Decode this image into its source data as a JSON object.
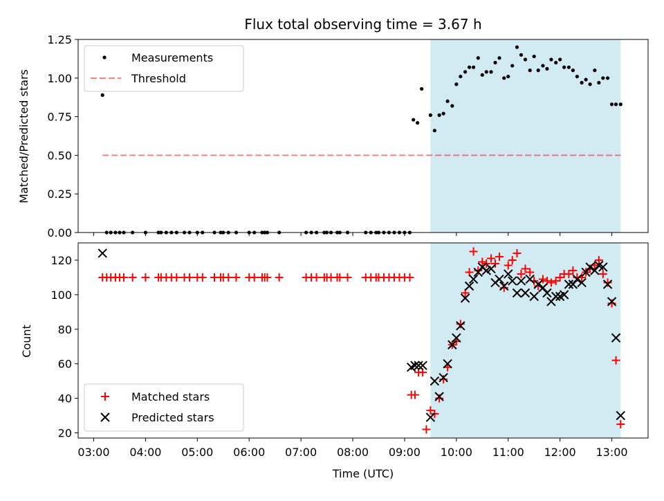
{
  "chart_data": [
    {
      "type": "scatter",
      "title": "Flux total observing time = 3.67 h",
      "xlabel": "",
      "ylabel": "Matched/Predicted stars",
      "xlim": [
        2.7,
        13.7
      ],
      "ylim": [
        0,
        1.25
      ],
      "yticks": [
        "0.00",
        "0.25",
        "0.50",
        "0.75",
        "1.00",
        "1.25"
      ],
      "ytick_values": [
        0,
        0.25,
        0.5,
        0.75,
        1.0,
        1.25
      ],
      "shaded_region": {
        "x0": 9.5,
        "x1": 13.17,
        "color": "#add8e6"
      },
      "legend": {
        "position": "upper left",
        "entries": [
          "Measurements",
          "Threshold"
        ]
      },
      "threshold": {
        "name": "Threshold",
        "x": [
          3.17,
          13.17
        ],
        "y": 0.5,
        "color": "#ff0000"
      },
      "series": [
        {
          "name": "Measurements",
          "color": "#000000",
          "x": [
            3.17,
            3.25,
            3.33,
            3.42,
            3.5,
            3.58,
            3.75,
            4.0,
            4.25,
            4.3,
            4.4,
            4.5,
            4.6,
            4.75,
            4.85,
            5.0,
            5.1,
            5.33,
            5.45,
            5.5,
            5.6,
            5.75,
            6.0,
            6.1,
            6.25,
            6.3,
            6.35,
            6.58,
            7.1,
            7.2,
            7.3,
            7.45,
            7.5,
            7.58,
            7.7,
            7.75,
            7.9,
            8.25,
            8.35,
            8.45,
            8.5,
            8.6,
            8.7,
            8.8,
            8.9,
            9.0,
            9.1,
            9.17,
            9.25,
            9.33,
            9.5,
            9.58,
            9.67,
            9.75,
            9.83,
            9.92,
            10.0,
            10.08,
            10.17,
            10.25,
            10.33,
            10.42,
            10.5,
            10.58,
            10.67,
            10.75,
            10.83,
            10.92,
            11.0,
            11.08,
            11.17,
            11.25,
            11.33,
            11.42,
            11.5,
            11.58,
            11.67,
            11.75,
            11.83,
            11.92,
            12.0,
            12.08,
            12.17,
            12.25,
            12.33,
            12.42,
            12.5,
            12.58,
            12.67,
            12.75,
            12.83,
            12.92,
            13.0,
            13.08,
            13.17
          ],
          "y": [
            0.89,
            0,
            0,
            0,
            0,
            0,
            0,
            0,
            0,
            0,
            0,
            0,
            0,
            0,
            0,
            0,
            0,
            0,
            0,
            0,
            0,
            0,
            0,
            0,
            0,
            0,
            0,
            0,
            0,
            0,
            0,
            0,
            0,
            0,
            0,
            0,
            0,
            0,
            0,
            0,
            0,
            0,
            0,
            0,
            0,
            0,
            0,
            0.73,
            0.71,
            0.93,
            0.76,
            0.66,
            0.76,
            0.77,
            0.85,
            0.82,
            0.96,
            1.01,
            1.04,
            1.07,
            1.07,
            1.13,
            1.02,
            1.04,
            1.04,
            1.1,
            1.13,
            1.0,
            1.01,
            1.08,
            1.2,
            1.15,
            1.12,
            1.05,
            1.14,
            1.05,
            1.08,
            1.06,
            1.12,
            1.1,
            1.12,
            1.07,
            1.07,
            1.05,
            1.01,
            0.97,
            0.99,
            0.96,
            1.05,
            0.97,
            1.0,
            1.0,
            0.83,
            0.83,
            0.83
          ]
        }
      ]
    },
    {
      "type": "scatter",
      "title": "",
      "xlabel": "Time (UTC)",
      "ylabel": "Count",
      "xlim": [
        2.7,
        13.7
      ],
      "ylim": [
        17,
        130
      ],
      "xticks": [
        "03:00",
        "04:00",
        "05:00",
        "06:00",
        "07:00",
        "08:00",
        "09:00",
        "10:00",
        "11:00",
        "12:00",
        "13:00"
      ],
      "xtick_values": [
        3,
        4,
        5,
        6,
        7,
        8,
        9,
        10,
        11,
        12,
        13
      ],
      "yticks": [
        "20",
        "40",
        "60",
        "80",
        "100",
        "120"
      ],
      "ytick_values": [
        20,
        40,
        60,
        80,
        100,
        120
      ],
      "shaded_region": {
        "x0": 9.5,
        "x1": 13.17,
        "color": "#add8e6"
      },
      "legend": {
        "position": "lower left",
        "entries": [
          "Matched stars",
          "Predicted stars"
        ]
      },
      "series": [
        {
          "name": "Matched stars",
          "marker": "plus",
          "color": "#ff0000",
          "x": [
            3.17,
            3.25,
            3.33,
            3.42,
            3.5,
            3.58,
            3.75,
            4.0,
            4.25,
            4.3,
            4.4,
            4.5,
            4.6,
            4.75,
            4.85,
            5.0,
            5.1,
            5.33,
            5.45,
            5.5,
            5.6,
            5.75,
            6.0,
            6.1,
            6.25,
            6.3,
            6.35,
            6.58,
            7.1,
            7.2,
            7.3,
            7.45,
            7.5,
            7.58,
            7.7,
            7.75,
            7.9,
            8.25,
            8.35,
            8.45,
            8.5,
            8.6,
            8.7,
            8.8,
            8.9,
            9.0,
            9.1,
            9.13,
            9.2,
            9.27,
            9.35,
            9.42,
            9.5,
            9.58,
            9.67,
            9.75,
            9.83,
            9.92,
            10.0,
            10.08,
            10.17,
            10.25,
            10.33,
            10.42,
            10.5,
            10.58,
            10.67,
            10.75,
            10.83,
            10.92,
            11.0,
            11.08,
            11.17,
            11.25,
            11.33,
            11.42,
            11.5,
            11.58,
            11.67,
            11.75,
            11.83,
            11.92,
            12.0,
            12.08,
            12.17,
            12.25,
            12.33,
            12.42,
            12.5,
            12.58,
            12.67,
            12.75,
            12.83,
            12.92,
            13.0,
            13.08,
            13.17
          ],
          "y": [
            110,
            110,
            110,
            110,
            110,
            110,
            110,
            110,
            110,
            110,
            110,
            110,
            110,
            110,
            110,
            110,
            110,
            110,
            110,
            110,
            110,
            110,
            110,
            110,
            110,
            110,
            110,
            110,
            110,
            110,
            110,
            110,
            110,
            110,
            110,
            110,
            110,
            110,
            110,
            110,
            110,
            110,
            110,
            110,
            110,
            110,
            110,
            42,
            42,
            55,
            55,
            22,
            33,
            31,
            40,
            51,
            58,
            71,
            73,
            83,
            101,
            113,
            125,
            114,
            119,
            118,
            121,
            118,
            122,
            104,
            117,
            120,
            124,
            112,
            115,
            113,
            108,
            105,
            109,
            108,
            107,
            108,
            110,
            112,
            112,
            114,
            110,
            110,
            113,
            115,
            117,
            120,
            112,
            107,
            95,
            62,
            25
          ]
        },
        {
          "name": "Predicted stars",
          "marker": "x",
          "color": "#000000",
          "x": [
            3.17,
            9.13,
            9.2,
            9.27,
            9.35,
            9.5,
            9.58,
            9.67,
            9.75,
            9.83,
            9.92,
            10.0,
            10.08,
            10.17,
            10.25,
            10.33,
            10.42,
            10.5,
            10.58,
            10.67,
            10.75,
            10.83,
            10.92,
            11.0,
            11.08,
            11.17,
            11.25,
            11.33,
            11.42,
            11.5,
            11.58,
            11.67,
            11.75,
            11.83,
            11.92,
            12.0,
            12.08,
            12.17,
            12.25,
            12.33,
            12.42,
            12.5,
            12.58,
            12.67,
            12.75,
            12.83,
            12.92,
            13.0,
            13.08,
            13.17
          ],
          "y": [
            124,
            58,
            59,
            59,
            59,
            29,
            50,
            41,
            52,
            60,
            71,
            75,
            82,
            98,
            105,
            109,
            113,
            116,
            114,
            115,
            107,
            109,
            105,
            112,
            108,
            101,
            108,
            101,
            109,
            99,
            106,
            104,
            101,
            96,
            99,
            99,
            100,
            106,
            106,
            109,
            107,
            113,
            116,
            114,
            117,
            116,
            106,
            96,
            75,
            30
          ]
        }
      ]
    }
  ]
}
